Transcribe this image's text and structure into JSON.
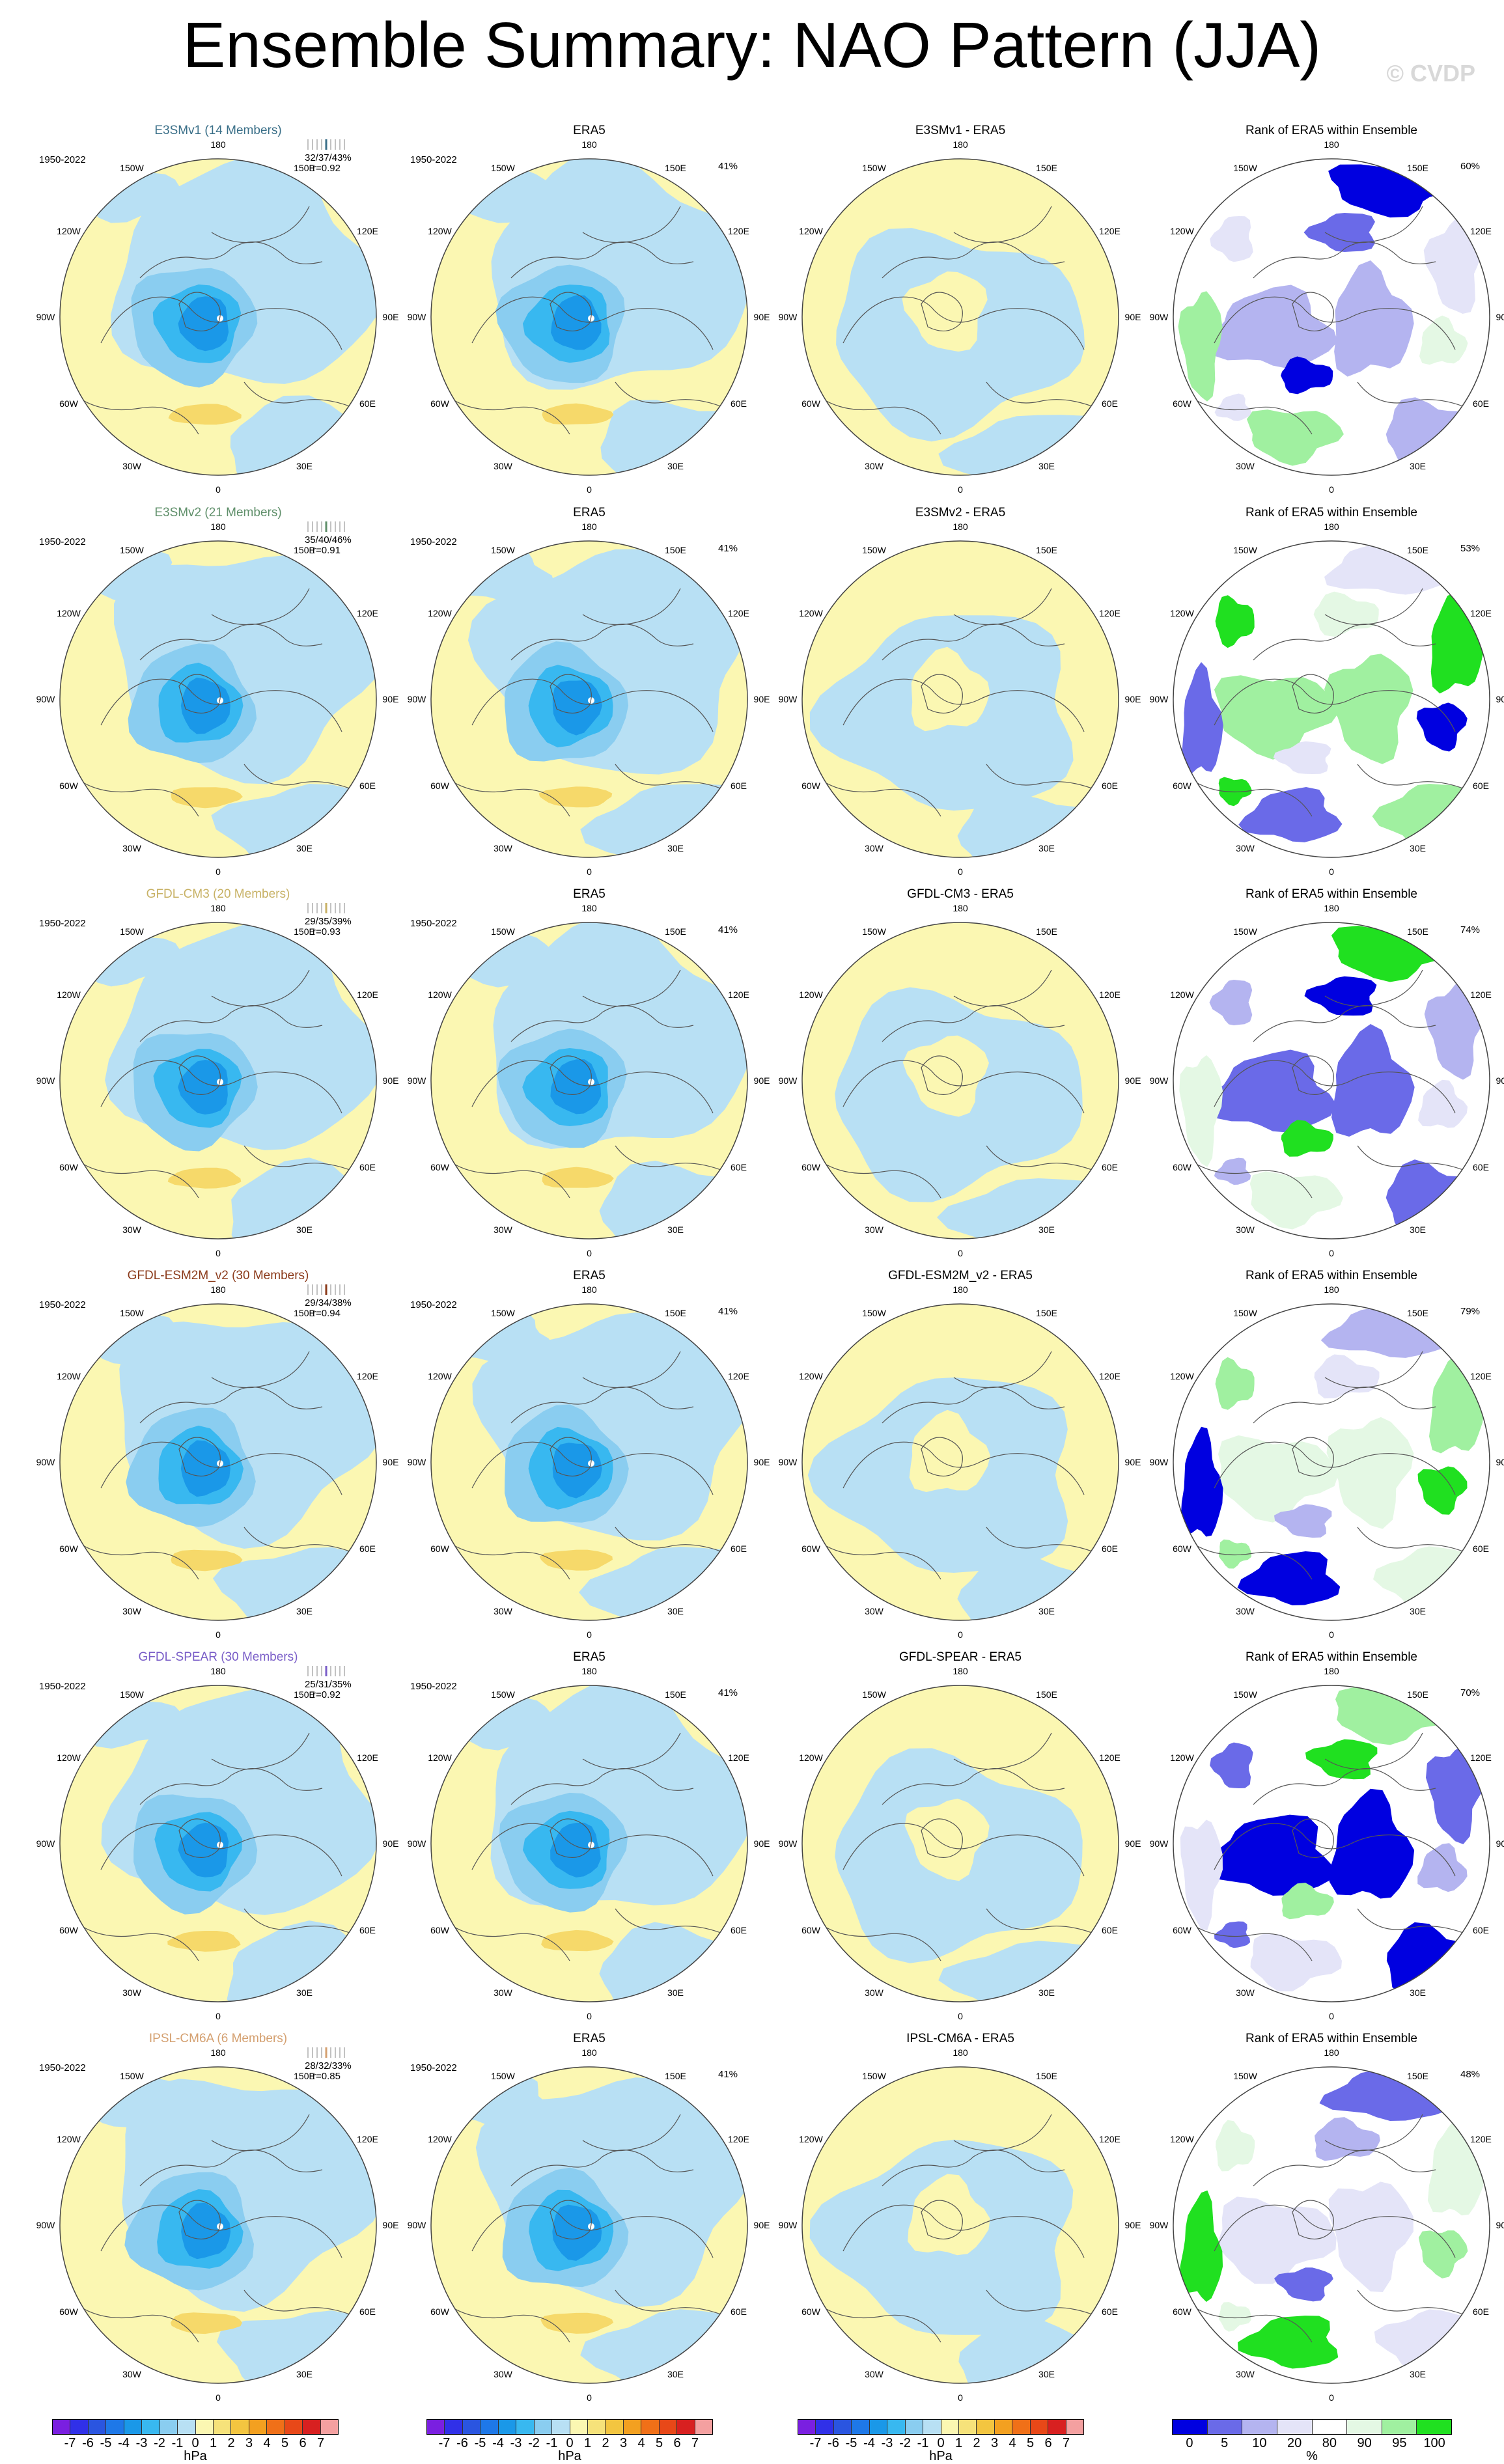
{
  "title": "Ensemble Summary: NAO Pattern (JJA)",
  "copyright": "© CVDP",
  "period": "1950-2022",
  "lon_labels": [
    "180",
    "150E",
    "120E",
    "90E",
    "60E",
    "30E",
    "0",
    "30W",
    "60W",
    "90W",
    "120W",
    "150W"
  ],
  "rows": [
    {
      "model": "E3SMv1 (14 Members)",
      "model_color": "#3a6f88",
      "stats_pct": "32/37/43%",
      "stats_r": "r=0.92",
      "diff_title": "E3SMv1 - ERA5",
      "rank_pct": "60%"
    },
    {
      "model": "E3SMv2 (21 Members)",
      "model_color": "#5f8f6a",
      "stats_pct": "35/40/46%",
      "stats_r": "r=0.91",
      "diff_title": "E3SMv2 - ERA5",
      "rank_pct": "53%"
    },
    {
      "model": "GFDL-CM3 (20 Members)",
      "model_color": "#c8b266",
      "stats_pct": "29/35/39%",
      "stats_r": "r=0.93",
      "diff_title": "GFDL-CM3 - ERA5",
      "rank_pct": "74%"
    },
    {
      "model": "GFDL-ESM2M_v2 (30 Members)",
      "model_color": "#8b3a1a",
      "stats_pct": "29/34/38%",
      "stats_r": "r=0.94",
      "diff_title": "GFDL-ESM2M_v2 - ERA5",
      "rank_pct": "79%"
    },
    {
      "model": "GFDL-SPEAR (30 Members)",
      "model_color": "#7a5ec8",
      "stats_pct": "25/31/35%",
      "stats_r": "r=0.92",
      "diff_title": "GFDL-SPEAR - ERA5",
      "rank_pct": "70%"
    },
    {
      "model": "IPSL-CM6A (6 Members)",
      "model_color": "#d4a070",
      "stats_pct": "28/32/33%",
      "stats_r": "r=0.85",
      "diff_title": "IPSL-CM6A - ERA5",
      "rank_pct": "48%"
    }
  ],
  "era5": {
    "title": "ERA5",
    "pct": "41%"
  },
  "rank_title": "Rank of ERA5 within Ensemble",
  "colorbars": {
    "hpa": {
      "unit": "hPa",
      "labels": [
        "-7",
        "-6",
        "-5",
        "-4",
        "-3",
        "-2",
        "-1",
        "0",
        "1",
        "2",
        "3",
        "4",
        "5",
        "6",
        "7"
      ],
      "colors": [
        "#7a1fe0",
        "#3030e8",
        "#2a55e0",
        "#1e78e8",
        "#1a98e8",
        "#38b8f0",
        "#8acdf0",
        "#b8e0f4",
        "#fbf7b2",
        "#f6e27a",
        "#f3c540",
        "#f3a020",
        "#f07018",
        "#e84818",
        "#d82020",
        "#f4a0a0"
      ]
    },
    "rank": {
      "unit": "%",
      "labels": [
        "0",
        "5",
        "10",
        "20",
        "80",
        "90",
        "95",
        "100"
      ],
      "colors": [
        "#0000e0",
        "#6a6ae8",
        "#b4b4f0",
        "#e4e4f8",
        "#ffffff",
        "#e4f8e4",
        "#a0f0a0",
        "#20e020"
      ]
    }
  }
}
